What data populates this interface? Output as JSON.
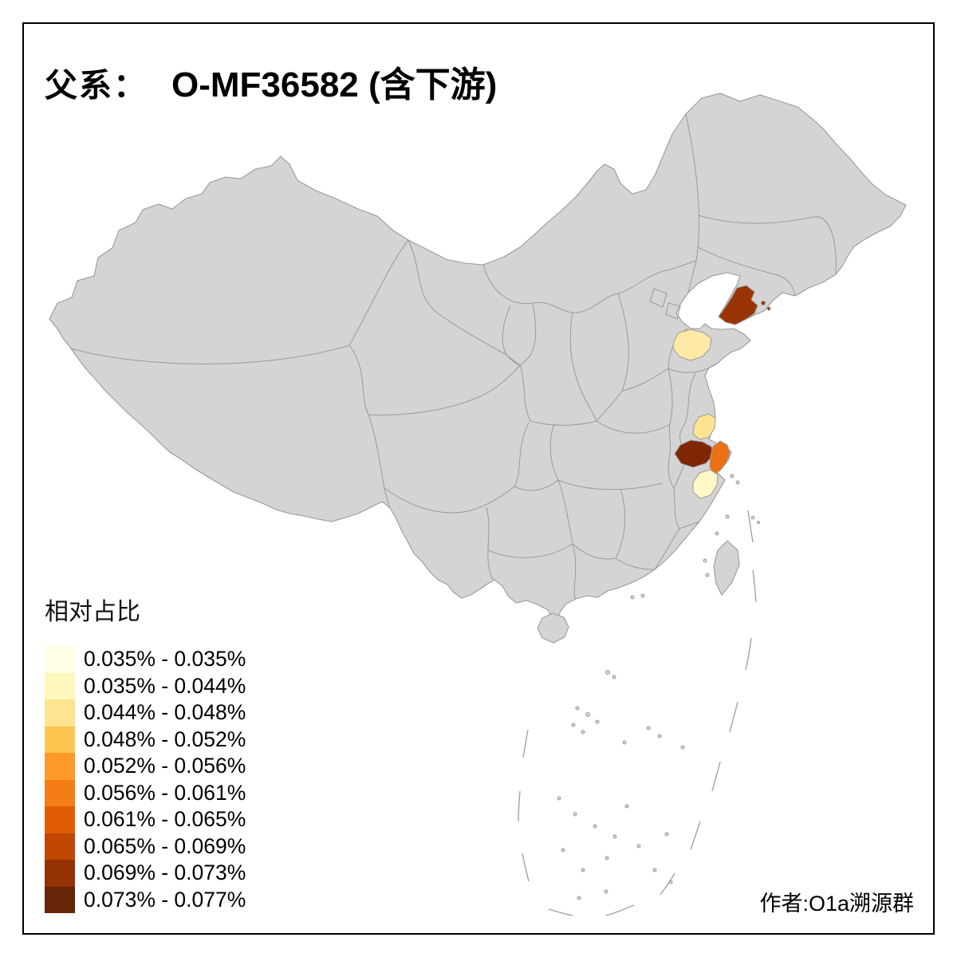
{
  "title": {
    "prefix": "父系：",
    "main": "O-MF36582 (含下游)"
  },
  "attribution": "作者:O1a溯源群",
  "legend": {
    "title": "相对占比",
    "items": [
      {
        "label": "0.035% - 0.035%",
        "color": "#FFFFE5"
      },
      {
        "label": "0.035% - 0.044%",
        "color": "#FFF7BC"
      },
      {
        "label": "0.044% - 0.048%",
        "color": "#FEE391"
      },
      {
        "label": "0.048% - 0.052%",
        "color": "#FEC44F"
      },
      {
        "label": "0.052% - 0.056%",
        "color": "#FE9929"
      },
      {
        "label": "0.056% - 0.061%",
        "color": "#F57D15"
      },
      {
        "label": "0.061% - 0.065%",
        "color": "#E15C03"
      },
      {
        "label": "0.065% - 0.069%",
        "color": "#C04602"
      },
      {
        "label": "0.069% - 0.073%",
        "color": "#943203"
      },
      {
        "label": "0.073% - 0.077%",
        "color": "#662506"
      }
    ]
  },
  "map": {
    "base_fill": "#D4D4D4",
    "border_color": "#9A9A9A",
    "sea_color": "#FFFFFF",
    "regions": {
      "liaodong-peninsula": {
        "color": "#993404"
      },
      "central-shandong": {
        "color": "#FEE9A6"
      },
      "southern-jiangsu": {
        "color": "#FEE391"
      },
      "northern-zhejiang-dark": {
        "color": "#7F2704"
      },
      "shanghai-coastal": {
        "color": "#EC7014"
      },
      "central-zhejiang-pale": {
        "color": "#FFF8C6"
      }
    }
  }
}
